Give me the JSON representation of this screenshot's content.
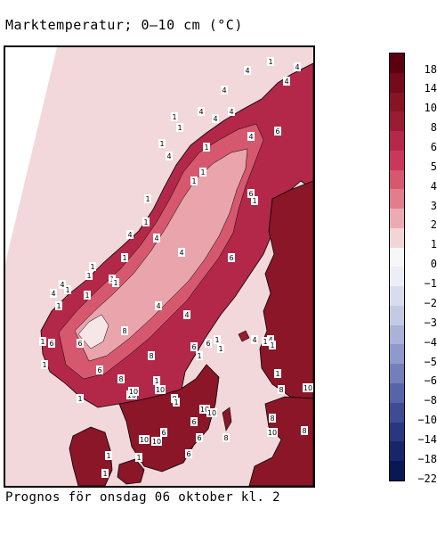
{
  "title": "Marktemperatur; 0–10 cm (°C)",
  "footer": "Prognos för onsdag 06 oktober kl. 2",
  "legend": {
    "labels": [
      "18",
      "14",
      "10",
      "8",
      "6",
      "5",
      "4",
      "3",
      "2",
      "1",
      "0",
      "−1",
      "−2",
      "−3",
      "−4",
      "−5",
      "−6",
      "−8",
      "−10",
      "−14",
      "−18",
      "−22"
    ],
    "colors": [
      "#5c0010",
      "#740a1c",
      "#861425",
      "#9a1c32",
      "#b5284a",
      "#c9375a",
      "#d6586f",
      "#e27d8b",
      "#ecabb2",
      "#f2d5d6",
      "#f7f7f8",
      "#eceef7",
      "#d9dcee",
      "#c4c9e4",
      "#aab2d8",
      "#8f99cb",
      "#737ebb",
      "#5864a8",
      "#3f4b95",
      "#283780",
      "#172669",
      "#0a1755"
    ]
  },
  "map": {
    "colors": {
      "ocean": "#f2d8da",
      "land_warm": "#8a1628",
      "land_mid": "#b32848",
      "land_cool": "#d6586f",
      "land_cold": "#e9a4ac",
      "land_coldest": "#f6e6e8"
    },
    "labels": [
      "1",
      "4",
      "4",
      "4",
      "1",
      "4",
      "4",
      "4",
      "1",
      "1",
      "4",
      "4",
      "1",
      "4",
      "1",
      "1",
      "1",
      "1",
      "4",
      "4",
      "1",
      "1",
      "6",
      "6",
      "1",
      "4",
      "1",
      "1",
      "1",
      "4",
      "4",
      "1",
      "1",
      "1",
      "1",
      "6",
      "6",
      "4",
      "4",
      "6",
      "8",
      "6",
      "6",
      "1",
      "1",
      "4",
      "1",
      "4",
      "1",
      "8",
      "1",
      "1",
      "6",
      "10",
      "10",
      "1",
      "1",
      "8",
      "8",
      "6",
      "8",
      "1",
      "1",
      "10",
      "10",
      "10",
      "10",
      "8",
      "8",
      "10",
      "8",
      "6",
      "6",
      "10",
      "10",
      "6",
      "1",
      "1",
      "1"
    ]
  }
}
